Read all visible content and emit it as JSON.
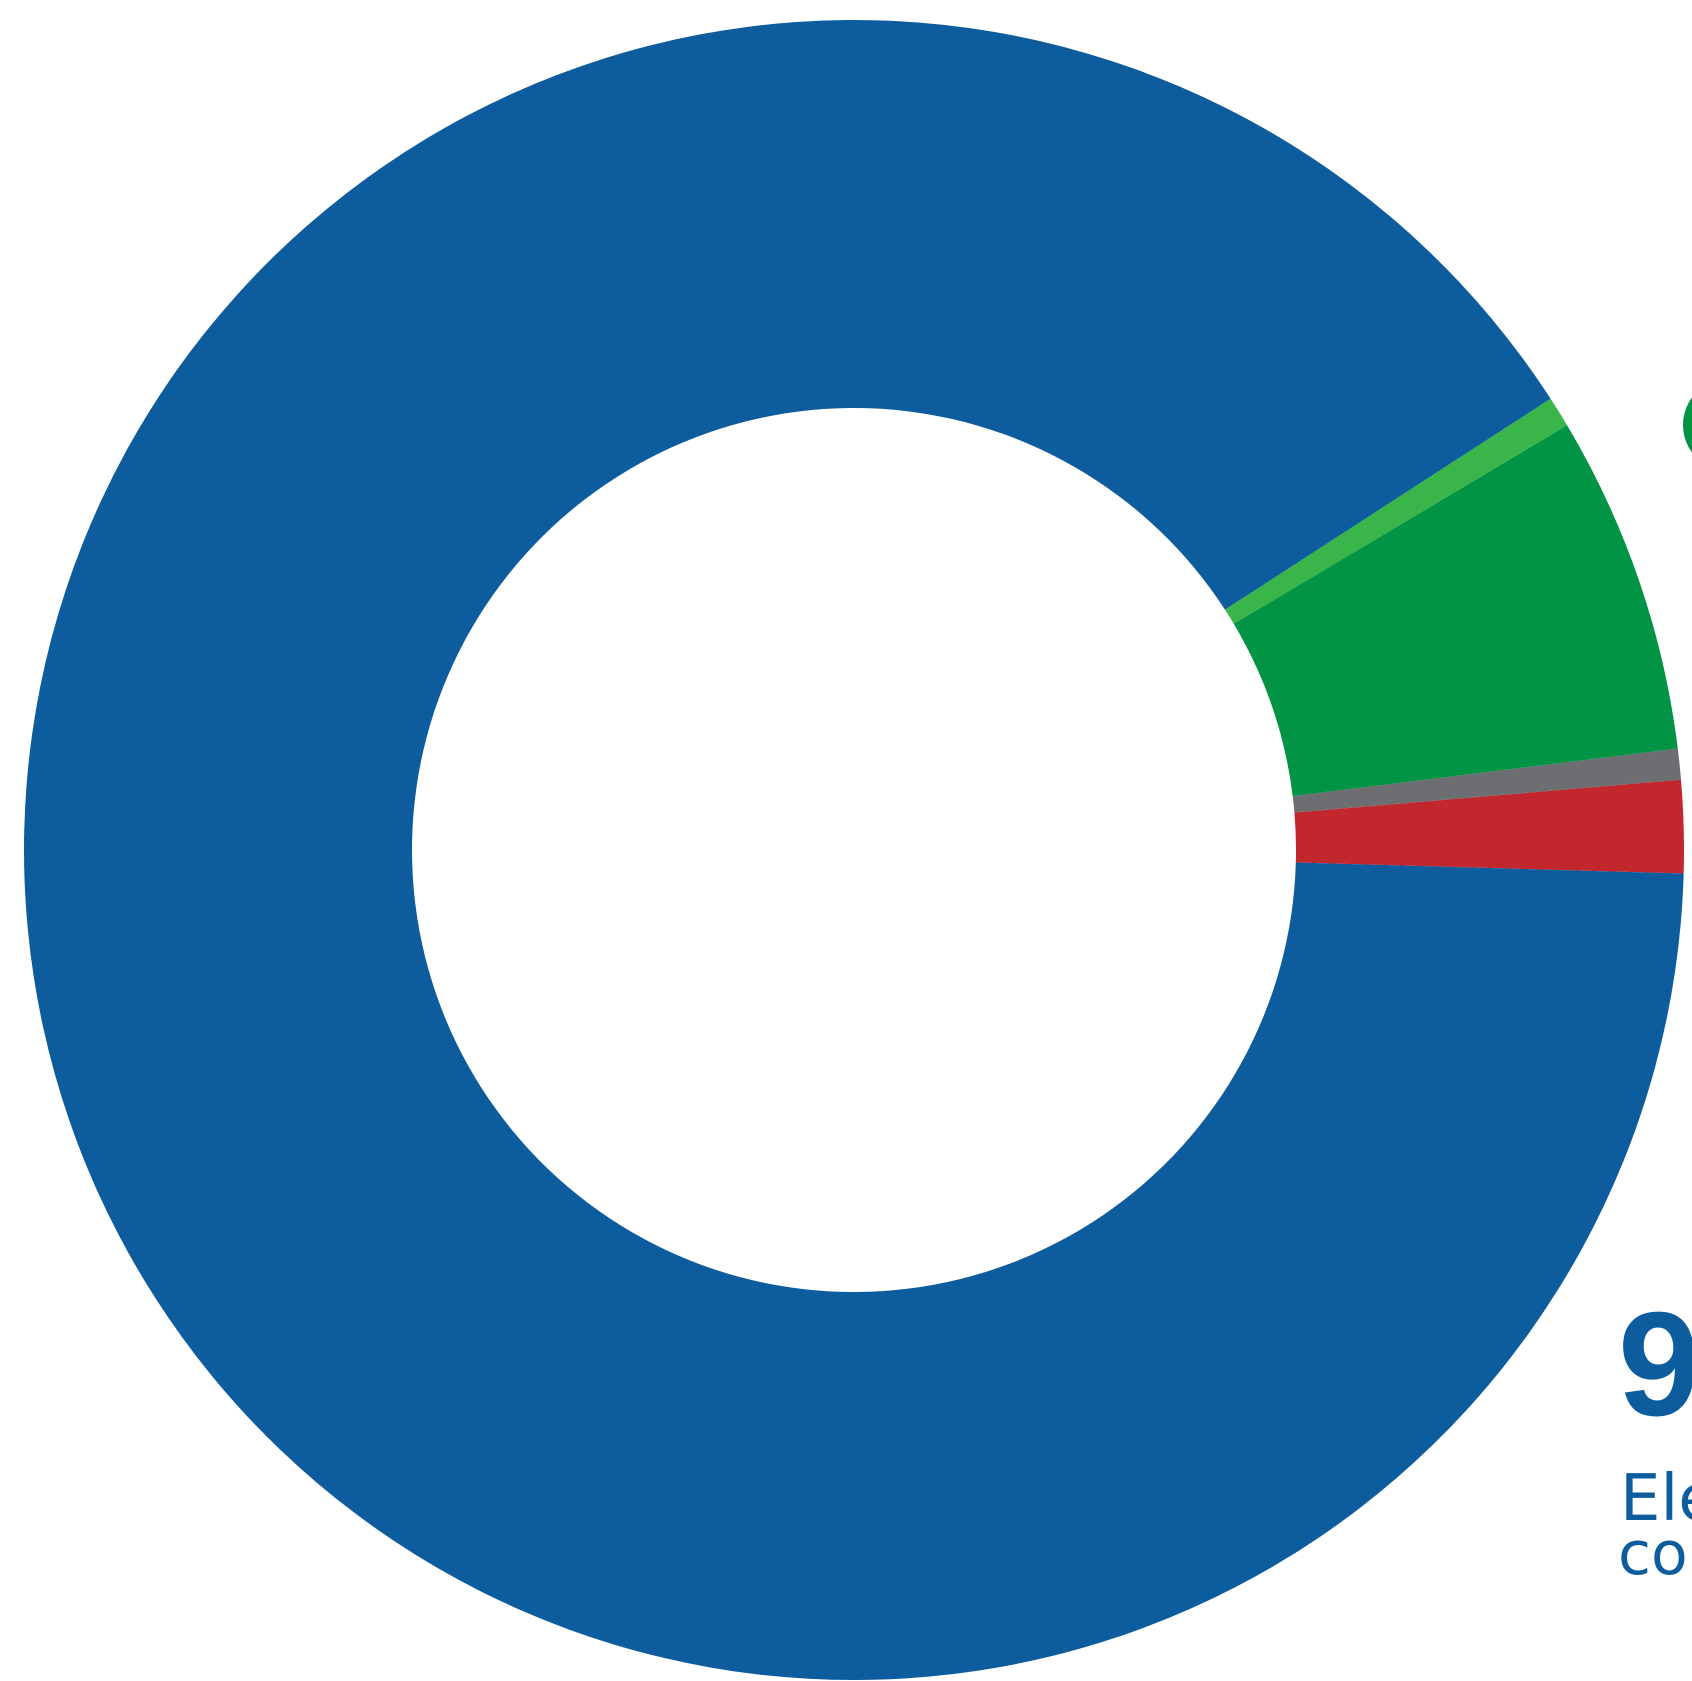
{
  "chart_data": {
    "type": "pie",
    "donut": true,
    "start": "3 o'clock",
    "direction": "counter-clockwise",
    "slices": [
      {
        "name": "",
        "value": 1.8,
        "color": "#c1272d"
      },
      {
        "name": "",
        "value": 0.6,
        "color": "#6d6e71"
      },
      {
        "name": "",
        "value": 6.6,
        "color": "#009444"
      },
      {
        "name": "",
        "value": 0.6,
        "color": "#39b54a"
      },
      {
        "name": "",
        "value": 90.4,
        "color": "#0d5c9e"
      }
    ],
    "callout": {
      "value_text": "9",
      "label_text": "Ele",
      "sub_text": "co",
      "color": "#0d5c9e"
    },
    "partial_callout_color": "#009444"
  }
}
